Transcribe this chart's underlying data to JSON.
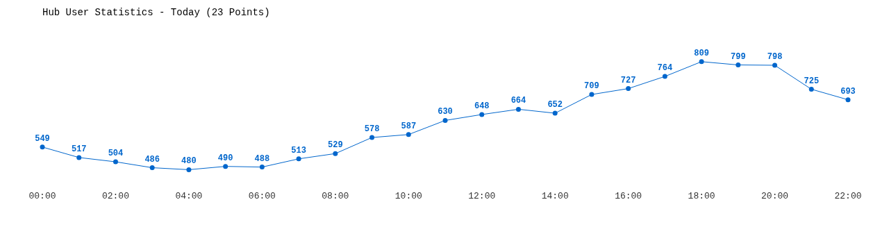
{
  "chart_data": {
    "type": "line",
    "title": "Hub User Statistics - Today (23 Points)",
    "categories": [
      "00:00",
      null,
      "02:00",
      null,
      "04:00",
      null,
      "06:00",
      null,
      "08:00",
      null,
      "10:00",
      null,
      "12:00",
      null,
      "14:00",
      null,
      "16:00",
      null,
      "18:00",
      null,
      "20:00",
      null,
      "22:00"
    ],
    "series": [
      {
        "color": "#0066cc",
        "values": [
          549,
          517,
          504,
          486,
          480,
          490,
          488,
          513,
          529,
          578,
          587,
          630,
          648,
          664,
          652,
          709,
          727,
          764,
          809,
          799,
          798,
          725,
          693
        ]
      }
    ],
    "tick_labels": "x",
    "data_labels": true,
    "marker": "circle",
    "line_style": "solid",
    "grid": false,
    "legend": false
  }
}
